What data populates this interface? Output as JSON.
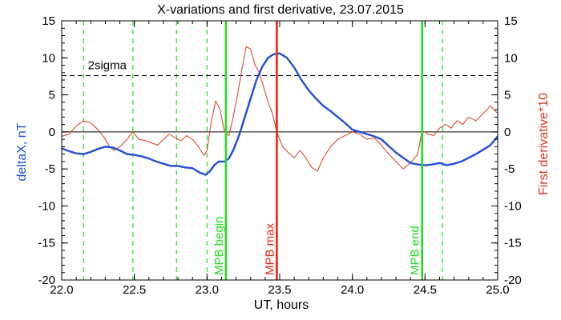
{
  "chart_data": {
    "type": "line",
    "title": "X-variations and first derivative, 23.07.2015",
    "xlabel": "UT, hours",
    "ylabel_left": "deltaX, nT",
    "ylabel_right": "First derivative*10",
    "xlim": [
      22.0,
      25.0
    ],
    "ylim": [
      -20,
      15
    ],
    "x_ticks": [
      "22.0",
      "22.5",
      "23.0",
      "23.5",
      "24.0",
      "24.5",
      "25.0"
    ],
    "x_tick_values": [
      22.0,
      22.5,
      23.0,
      23.5,
      24.0,
      24.5,
      25.0
    ],
    "y_ticks": [
      "15",
      "10",
      "5",
      "0",
      "-5",
      "-10",
      "-15",
      "-20"
    ],
    "y_tick_values": [
      15,
      10,
      5,
      0,
      -5,
      -10,
      -15,
      -20
    ],
    "grid": false,
    "colors": {
      "deltaX": "#1f4fd8",
      "derivative": "#d63a1a",
      "mpb": "#22dd22",
      "mpb_max": "#ee2211",
      "axis": "#000000",
      "sigma": "#000000"
    },
    "zero_line": 0,
    "sigma_line": {
      "label": "2sigma",
      "y": 7.6
    },
    "dashed_vlines_x": [
      22.15,
      22.49,
      22.79,
      23.0,
      24.62
    ],
    "event_lines": [
      {
        "label": "MPB begin",
        "x": 23.13,
        "color": "#22dd22"
      },
      {
        "label": "MPB max",
        "x": 23.48,
        "color": "#ee2211"
      },
      {
        "label": "MPB end",
        "x": 24.48,
        "color": "#22dd22"
      }
    ],
    "series": [
      {
        "key": "deltaX",
        "x": [
          22.0,
          22.05,
          22.1,
          22.15,
          22.2,
          22.25,
          22.3,
          22.35,
          22.4,
          22.45,
          22.5,
          22.55,
          22.6,
          22.65,
          22.7,
          22.75,
          22.8,
          22.85,
          22.9,
          22.95,
          22.99,
          23.02,
          23.05,
          23.08,
          23.12,
          23.15,
          23.18,
          23.22,
          23.26,
          23.3,
          23.34,
          23.38,
          23.42,
          23.46,
          23.5,
          23.55,
          23.6,
          23.65,
          23.7,
          23.75,
          23.8,
          23.85,
          23.9,
          23.95,
          24.0,
          24.05,
          24.1,
          24.15,
          24.2,
          24.25,
          24.3,
          24.35,
          24.4,
          24.45,
          24.5,
          24.55,
          24.6,
          24.65,
          24.7,
          24.75,
          24.8,
          24.85,
          24.9,
          24.95,
          25.0
        ],
        "values": [
          -2.2,
          -2.6,
          -2.9,
          -3.0,
          -2.7,
          -2.3,
          -2.0,
          -2.1,
          -2.5,
          -3.0,
          -3.1,
          -3.3,
          -3.6,
          -4.0,
          -4.3,
          -4.6,
          -4.6,
          -4.8,
          -4.9,
          -5.5,
          -5.8,
          -5.3,
          -4.5,
          -4.0,
          -4.0,
          -3.6,
          -2.5,
          -0.5,
          2.0,
          4.5,
          7.0,
          8.8,
          10.0,
          10.5,
          10.6,
          10.0,
          8.7,
          7.0,
          5.6,
          4.5,
          3.5,
          2.8,
          2.0,
          1.2,
          0.3,
          0.0,
          -0.3,
          -0.6,
          -1.0,
          -1.9,
          -2.8,
          -3.5,
          -4.2,
          -4.4,
          -4.5,
          -4.4,
          -4.2,
          -4.5,
          -4.3,
          -4.0,
          -3.5,
          -3.0,
          -2.4,
          -1.8,
          -0.6
        ]
      },
      {
        "key": "derivative",
        "x": [
          22.0,
          22.05,
          22.1,
          22.15,
          22.2,
          22.25,
          22.3,
          22.33,
          22.36,
          22.4,
          22.45,
          22.49,
          22.53,
          22.58,
          22.62,
          22.66,
          22.7,
          22.74,
          22.78,
          22.82,
          22.86,
          22.9,
          22.94,
          22.98,
          23.0,
          23.03,
          23.06,
          23.09,
          23.12,
          23.15,
          23.18,
          23.21,
          23.24,
          23.27,
          23.3,
          23.33,
          23.36,
          23.39,
          23.42,
          23.45,
          23.48,
          23.52,
          23.56,
          23.6,
          23.64,
          23.68,
          23.72,
          23.76,
          23.8,
          23.85,
          23.9,
          23.95,
          24.0,
          24.05,
          24.1,
          24.15,
          24.2,
          24.25,
          24.3,
          24.35,
          24.4,
          24.45,
          24.48,
          24.52,
          24.56,
          24.6,
          24.64,
          24.68,
          24.72,
          24.76,
          24.8,
          24.85,
          24.9,
          24.95,
          25.0
        ],
        "values": [
          -0.6,
          -0.3,
          0.8,
          1.5,
          1.2,
          0.3,
          -1.0,
          -2.0,
          -2.5,
          -2.0,
          -1.0,
          0.0,
          -1.0,
          -1.2,
          -1.5,
          -1.8,
          -1.0,
          -0.3,
          -0.8,
          -1.2,
          -0.5,
          -1.0,
          -2.0,
          -3.2,
          -2.5,
          1.5,
          4.2,
          3.0,
          0.0,
          -0.5,
          2.0,
          5.0,
          8.5,
          11.5,
          11.2,
          9.0,
          8.0,
          6.0,
          4.0,
          2.5,
          0.0,
          -2.0,
          -2.8,
          -3.5,
          -2.5,
          -3.5,
          -4.8,
          -5.3,
          -3.5,
          -2.0,
          -1.0,
          -0.5,
          0.0,
          -0.3,
          -1.0,
          -0.8,
          -1.8,
          -3.0,
          -4.0,
          -5.0,
          -4.2,
          -3.0,
          0.2,
          -0.3,
          -0.5,
          0.5,
          1.0,
          0.5,
          1.5,
          1.0,
          2.0,
          1.5,
          2.5,
          3.5,
          2.5
        ]
      }
    ]
  }
}
